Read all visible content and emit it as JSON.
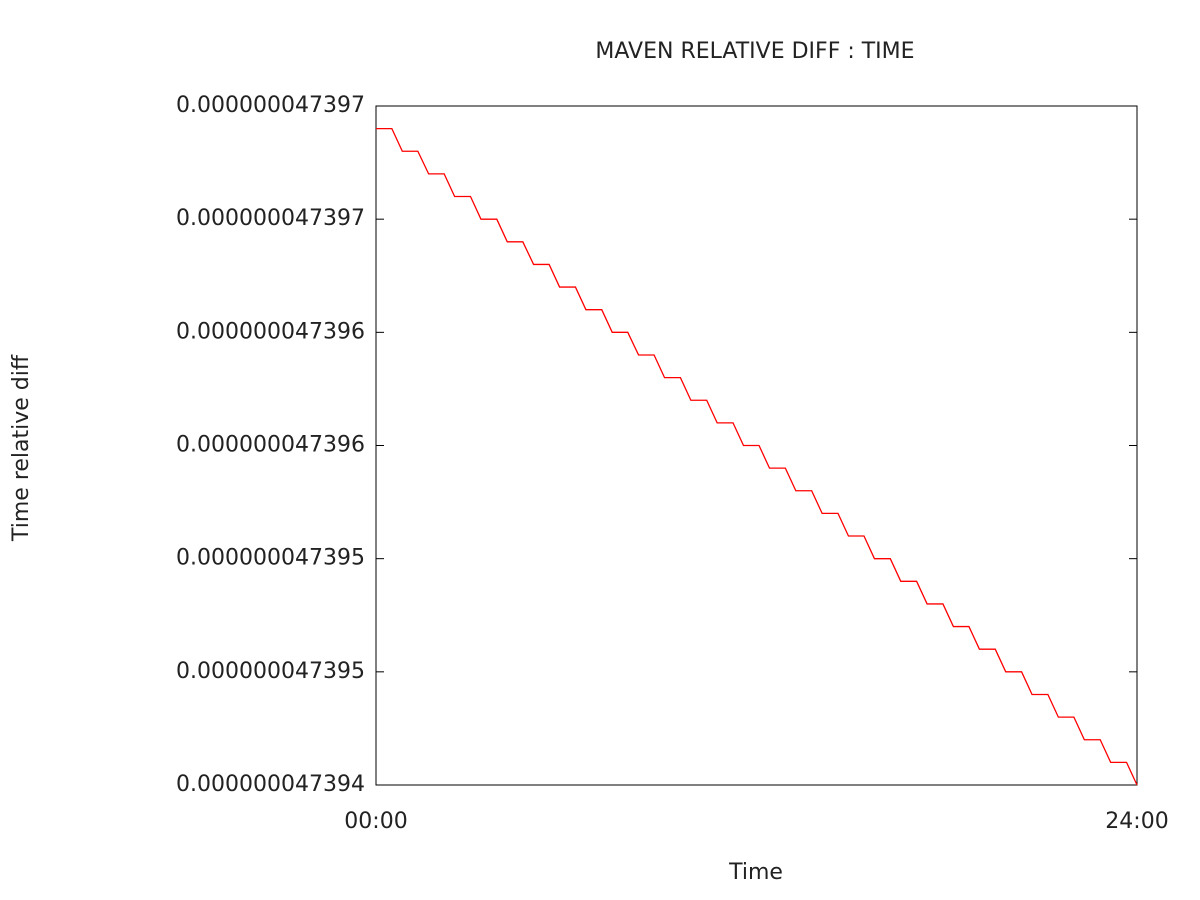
{
  "chart_data": {
    "type": "line",
    "title": "MAVEN RELATIVE DIFF : TIME",
    "x_label": "Time",
    "y_label": "Time relative diff",
    "xlim": [
      0,
      24
    ],
    "xticks": [
      {
        "value": 0,
        "label": "00:00"
      },
      {
        "value": 24,
        "label": "24:00"
      }
    ],
    "ylim": [
      4.7394e-08,
      4.7397e-08
    ],
    "yticks": [
      {
        "value": 4.7394e-08,
        "label": "0.000000047394"
      },
      {
        "value": 4.73945e-08,
        "label": "0.000000047395"
      },
      {
        "value": 4.7395e-08,
        "label": "0.000000047395"
      },
      {
        "value": 4.73955e-08,
        "label": "0.000000047396"
      },
      {
        "value": 4.7396e-08,
        "label": "0.000000047396"
      },
      {
        "value": 4.73965e-08,
        "label": "0.000000047397"
      },
      {
        "value": 4.7397e-08,
        "label": "0.000000047397"
      }
    ],
    "grid": false,
    "series": [
      {
        "color": "#ff0000",
        "x": [
          0,
          0.5,
          0.83,
          1.32,
          1.66,
          2.15,
          2.48,
          2.98,
          3.31,
          3.81,
          4.14,
          4.63,
          4.97,
          5.46,
          5.79,
          6.29,
          6.62,
          7.12,
          7.45,
          7.94,
          8.28,
          8.77,
          9.1,
          9.6,
          9.93,
          10.43,
          10.76,
          11.26,
          11.59,
          12.08,
          12.41,
          12.91,
          13.24,
          13.74,
          14.07,
          14.57,
          14.9,
          15.39,
          15.72,
          16.22,
          16.55,
          17.05,
          17.38,
          17.88,
          18.21,
          18.7,
          19.03,
          19.53,
          19.86,
          20.36,
          20.69,
          21.19,
          21.52,
          22.01,
          22.34,
          22.84,
          23.17,
          23.67,
          24
        ],
        "values": [
          4.73969e-08,
          4.73969e-08,
          4.73968e-08,
          4.73968e-08,
          4.73967e-08,
          4.73967e-08,
          4.73966e-08,
          4.73966e-08,
          4.73965e-08,
          4.73965e-08,
          4.73964e-08,
          4.73964e-08,
          4.73963e-08,
          4.73963e-08,
          4.73962e-08,
          4.73962e-08,
          4.73961e-08,
          4.73961e-08,
          4.7396e-08,
          4.7396e-08,
          4.73959e-08,
          4.73959e-08,
          4.73958e-08,
          4.73958e-08,
          4.73957e-08,
          4.73957e-08,
          4.73956e-08,
          4.73956e-08,
          4.73955e-08,
          4.73955e-08,
          4.73954e-08,
          4.73954e-08,
          4.73953e-08,
          4.73953e-08,
          4.73952e-08,
          4.73952e-08,
          4.73951e-08,
          4.73951e-08,
          4.7395e-08,
          4.7395e-08,
          4.73949e-08,
          4.73949e-08,
          4.73948e-08,
          4.73948e-08,
          4.73947e-08,
          4.73947e-08,
          4.73946e-08,
          4.73946e-08,
          4.73945e-08,
          4.73945e-08,
          4.73944e-08,
          4.73944e-08,
          4.73943e-08,
          4.73943e-08,
          4.73942e-08,
          4.73942e-08,
          4.73941e-08,
          4.73941e-08,
          4.7394e-08
        ]
      }
    ]
  }
}
